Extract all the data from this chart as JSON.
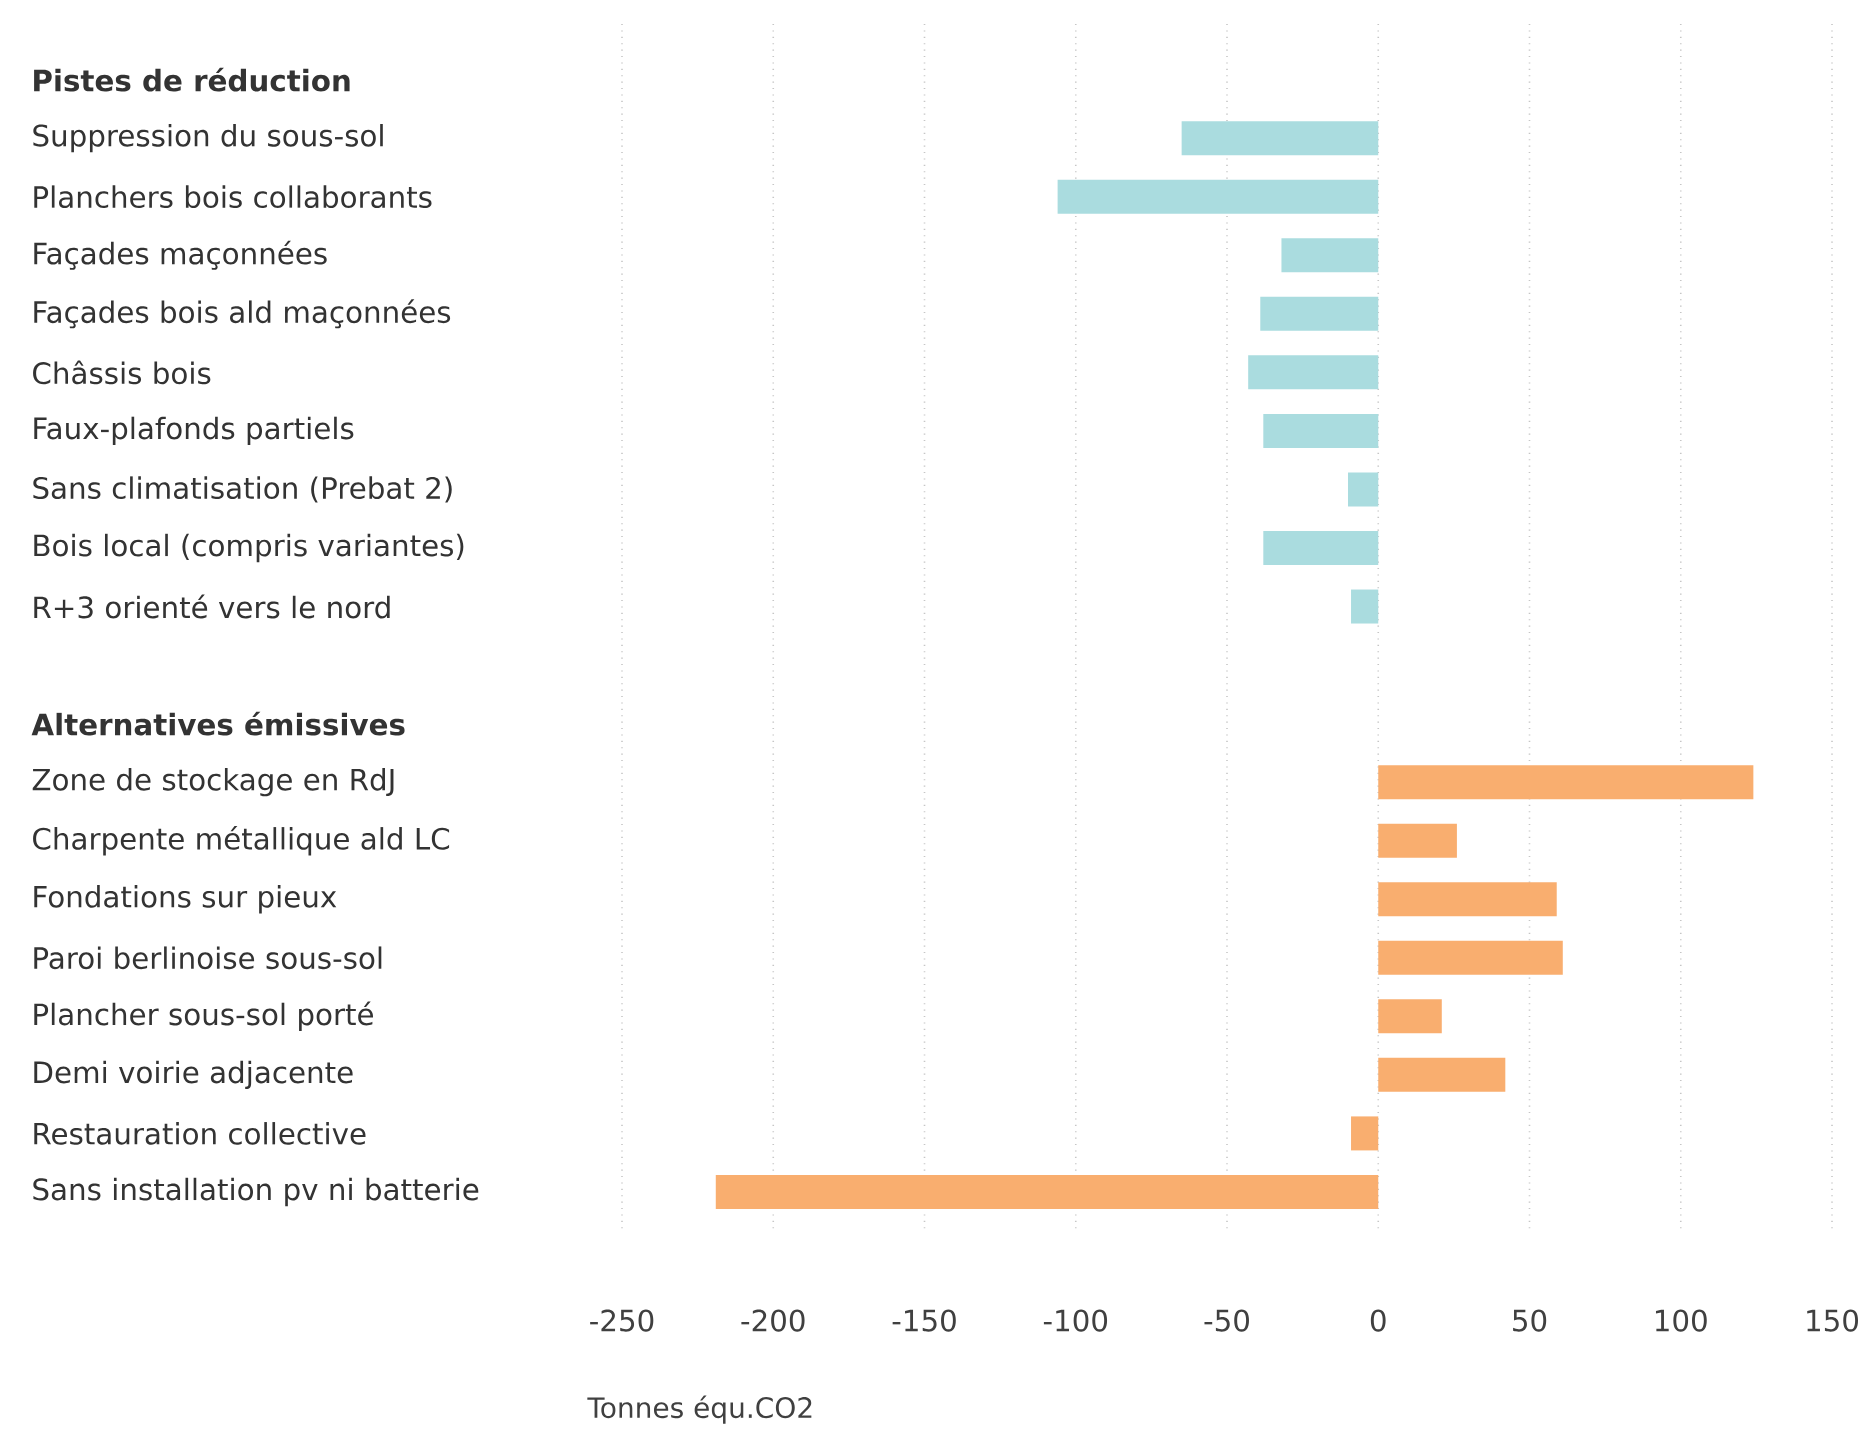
{
  "chart_data": {
    "type": "bar",
    "orientation": "horizontal",
    "xlabel": "Tonnes équ.CO2",
    "categories": [
      "Pistes de réduction",
      "Suppression du sous-sol",
      "Planchers bois collaborants",
      "Façades maçonnées",
      "Façades bois ald maçonnées",
      "Châssis bois",
      "Faux-plafonds partiels",
      "Sans climatisation (Prebat 2)",
      "Bois local (compris variantes)",
      "R+3 orienté vers le nord",
      null,
      "Alternatives émissives",
      "Zone de stockage en RdJ",
      "Charpente métallique ald LC",
      "Fondations sur pieux",
      "Paroi berlinoise sous-sol",
      "Plancher sous-sol porté",
      "Demi voirie adjacente",
      "Restauration collective",
      "Sans installation pv ni batterie"
    ],
    "series": [
      {
        "color": "#aadcdf",
        "values": [
          null,
          -65,
          -106,
          -32,
          -39,
          -43,
          -38,
          -10,
          -38,
          -9,
          null,
          null,
          null,
          null,
          null,
          null,
          null,
          null,
          null,
          null
        ]
      },
      {
        "color": "#f9ae6f",
        "values": [
          null,
          null,
          null,
          null,
          null,
          null,
          null,
          null,
          null,
          null,
          null,
          null,
          124,
          26,
          59,
          61,
          21,
          42,
          -9,
          -219
        ]
      }
    ],
    "xlim": [
      -250,
      150
    ],
    "xticks": [
      -250,
      -200,
      -150,
      -100,
      -50,
      0,
      50,
      100,
      150
    ],
    "grid": "x"
  }
}
